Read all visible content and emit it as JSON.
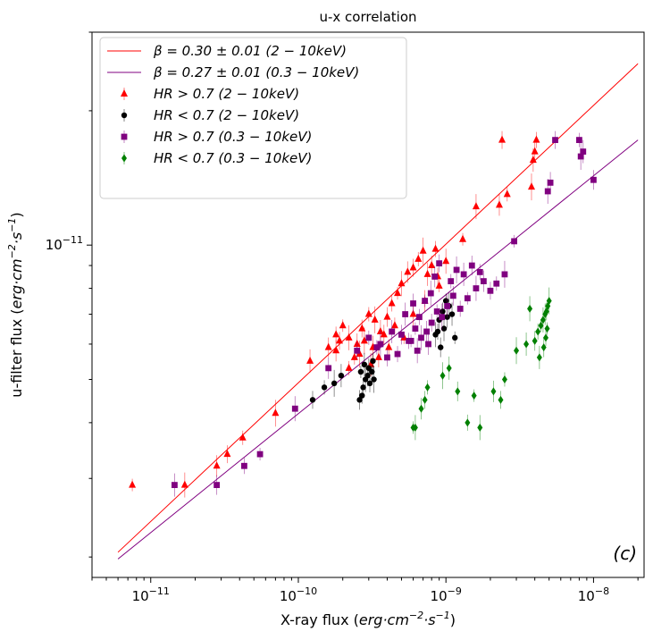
{
  "chart_data": {
    "type": "scatter",
    "title": "u-x correlation",
    "xlabel": {
      "text": "X-ray flux (",
      "math": "erg·cm",
      "sup1": "−2",
      "mid": "·s",
      "sup2": "−1",
      "close": ")"
    },
    "ylabel": {
      "text": "u-filter flux (",
      "math": "erg·cm",
      "sup1": "−2",
      "mid": "·s",
      "sup2": "−1",
      "close": ")"
    },
    "x_scale": "log",
    "y_scale": "log",
    "xlim": [
      4e-12,
      2.2e-08
    ],
    "ylim": [
      1.8e-12,
      3e-11
    ],
    "x_ticks": [
      {
        "value": 1e-11,
        "base": "10",
        "exp": "−11"
      },
      {
        "value": 1e-10,
        "base": "10",
        "exp": "−10"
      },
      {
        "value": 1e-09,
        "base": "10",
        "exp": "−9"
      },
      {
        "value": 1e-08,
        "base": "10",
        "exp": "−8"
      }
    ],
    "y_ticks": [
      {
        "value": 1e-11,
        "base": "10",
        "exp": "−11"
      }
    ],
    "annotation": {
      "text": "(c)",
      "color": "#ff0000"
    },
    "legend_position": "top-left",
    "fit_lines": [
      {
        "name": "β = 0.30 ± 0.01 (2 − 10keV)",
        "color": "#ff0000",
        "x": [
          6e-12,
          2e-08
        ],
        "y": [
          2.05e-12,
          2.55e-11
        ]
      },
      {
        "name": "β = 0.27 ± 0.01 (0.3 − 10keV)",
        "color": "#800080",
        "x": [
          6e-12,
          2e-08
        ],
        "y": [
          1.98e-12,
          1.72e-11
        ]
      }
    ],
    "series": [
      {
        "name": "HR > 0.7 (2 − 10keV)",
        "color": "#ff0000",
        "marker": "triangle",
        "x": [
          7.5e-12,
          1.7e-11,
          2.8e-11,
          3.3e-11,
          4.2e-11,
          7e-11,
          1.2e-10,
          1.6e-10,
          1.8e-10,
          2e-10,
          2.2e-10,
          2.5e-10,
          2.7e-10,
          3e-10,
          3.3e-10,
          3.6e-10,
          4e-10,
          4.3e-10,
          4.7e-10,
          5e-10,
          5.5e-10,
          6e-10,
          6.5e-10,
          7e-10,
          7.5e-10,
          8e-10,
          8.5e-10,
          9e-10,
          1e-09,
          1.8e-10,
          1.9e-10,
          2.4e-10,
          2.8e-10,
          3.2e-10,
          3.8e-10,
          4.5e-10,
          5.2e-10,
          6e-10,
          7.2e-10,
          8.8e-10,
          2.2e-10,
          2.6e-10,
          3.1e-10,
          3.5e-10,
          4.1e-10,
          1.3e-09,
          1.6e-09,
          2.3e-09,
          2.4e-09,
          2.6e-09,
          3.8e-09,
          3.9e-09,
          4e-09,
          4.1e-09
        ],
        "y": [
          2.9e-12,
          2.9e-12,
          3.2e-12,
          3.4e-12,
          3.7e-12,
          4.2e-12,
          5.5e-12,
          5.9e-12,
          6.3e-12,
          6.6e-12,
          6.2e-12,
          6e-12,
          6.5e-12,
          7e-12,
          6.8e-12,
          6.4e-12,
          6.9e-12,
          7.4e-12,
          7.8e-12,
          8.2e-12,
          8.7e-12,
          8.9e-12,
          9.3e-12,
          9.7e-12,
          8.6e-12,
          9e-12,
          9.8e-12,
          8.1e-12,
          9.2e-12,
          5.8e-12,
          6.1e-12,
          5.6e-12,
          6.1e-12,
          5.9e-12,
          6.3e-12,
          6.6e-12,
          6.2e-12,
          7e-12,
          7.5e-12,
          8.5e-12,
          5.3e-12,
          5.7e-12,
          5.4e-12,
          5.6e-12,
          5.9e-12,
          1.03e-11,
          1.22e-11,
          1.23e-11,
          1.72e-11,
          1.3e-11,
          1.35e-11,
          1.55e-11,
          1.62e-11,
          1.72e-11
        ]
      },
      {
        "name": "HR < 0.7 (2 − 10keV)",
        "color": "#000000",
        "marker": "circle",
        "x": [
          1.25e-10,
          1.5e-10,
          1.75e-10,
          1.95e-10,
          2.6e-10,
          2.7e-10,
          2.75e-10,
          2.85e-10,
          2.95e-10,
          3.05e-10,
          3.15e-10,
          3.25e-10,
          2.8e-10,
          3e-10,
          3.2e-10,
          2.65e-10,
          8.5e-10,
          9e-10,
          9.5e-10,
          1e-09,
          1.05e-09,
          1.1e-09,
          9.2e-10,
          8.8e-10,
          1.15e-09,
          9.7e-10,
          1.02e-09
        ],
        "y": [
          4.5e-12,
          4.8e-12,
          4.9e-12,
          5.1e-12,
          4.5e-12,
          4.6e-12,
          4.8e-12,
          5e-12,
          5.1e-12,
          4.9e-12,
          5.2e-12,
          5e-12,
          5.4e-12,
          5.3e-12,
          5.5e-12,
          5.2e-12,
          6.3e-12,
          6.8e-12,
          7.1e-12,
          7.5e-12,
          7.3e-12,
          7e-12,
          5.9e-12,
          6.4e-12,
          6.2e-12,
          6.5e-12,
          6.9e-12
        ]
      },
      {
        "name": "HR > 0.7 (0.3 − 10keV)",
        "color": "#800080",
        "marker": "square",
        "x": [
          1.45e-11,
          2.8e-11,
          4.3e-11,
          5.5e-11,
          9.5e-11,
          1.6e-10,
          2.5e-10,
          3e-10,
          3.6e-10,
          4.3e-10,
          5e-10,
          5.6e-10,
          6.2e-10,
          6.8e-10,
          7.4e-10,
          8e-10,
          8.7e-10,
          9.4e-10,
          1.02e-09,
          1.12e-09,
          1.25e-09,
          1.4e-09,
          1.6e-09,
          1.8e-09,
          2e-09,
          2.2e-09,
          2.5e-09,
          5.3e-10,
          6e-10,
          6.6e-10,
          7.2e-10,
          7.9e-10,
          8.4e-10,
          9e-10,
          1.08e-09,
          1.18e-09,
          1.32e-09,
          1.5e-09,
          1.7e-09,
          2.9e-09,
          4.9e-09,
          5.1e-09,
          5.5e-09,
          8e-09,
          8.2e-09,
          8.5e-09,
          1e-08,
          4.7e-10,
          5.8e-10,
          6.4e-10,
          7.6e-10,
          4e-10,
          3.4e-10
        ],
        "y": [
          2.9e-12,
          2.9e-12,
          3.2e-12,
          3.4e-12,
          4.3e-12,
          5.3e-12,
          5.8e-12,
          6.2e-12,
          6e-12,
          6.4e-12,
          6.3e-12,
          6.1e-12,
          6.5e-12,
          6.2e-12,
          6.4e-12,
          6.7e-12,
          7.1e-12,
          6.9e-12,
          7.3e-12,
          7.7e-12,
          7.2e-12,
          7.6e-12,
          8e-12,
          8.3e-12,
          7.9e-12,
          8.2e-12,
          8.6e-12,
          7e-12,
          7.4e-12,
          6.9e-12,
          7.5e-12,
          7.8e-12,
          8.5e-12,
          9.1e-12,
          8.3e-12,
          8.8e-12,
          8.6e-12,
          9e-12,
          8.7e-12,
          1.02e-11,
          1.32e-11,
          1.38e-11,
          1.72e-11,
          1.72e-11,
          1.58e-11,
          1.62e-11,
          1.4e-11,
          5.7e-12,
          6.1e-12,
          5.8e-12,
          6e-12,
          5.6e-12,
          5.9e-12
        ]
      },
      {
        "name": "HR < 0.7 (0.3 − 10keV)",
        "color": "#008000",
        "marker": "diamond",
        "x": [
          6e-10,
          6.2e-10,
          6.8e-10,
          7.2e-10,
          7.5e-10,
          9.5e-10,
          1.05e-09,
          1.2e-09,
          1.4e-09,
          1.55e-09,
          1.7e-09,
          2.1e-09,
          2.35e-09,
          2.5e-09,
          3e-09,
          3.5e-09,
          4e-09,
          4.2e-09,
          4.4e-09,
          4.55e-09,
          4.7e-09,
          4.8e-09,
          4.9e-09,
          5e-09,
          4.3e-09,
          4.6e-09,
          4.75e-09,
          4.85e-09,
          3.7e-09
        ],
        "y": [
          3.9e-12,
          3.9e-12,
          4.3e-12,
          4.5e-12,
          4.8e-12,
          5.1e-12,
          5.3e-12,
          4.7e-12,
          4e-12,
          4.6e-12,
          3.9e-12,
          4.7e-12,
          4.5e-12,
          5e-12,
          5.8e-12,
          6e-12,
          6.1e-12,
          6.4e-12,
          6.6e-12,
          6.8e-12,
          7e-12,
          7.1e-12,
          7.3e-12,
          7.5e-12,
          5.6e-12,
          5.9e-12,
          6.2e-12,
          6.5e-12,
          7.2e-12
        ]
      }
    ]
  }
}
